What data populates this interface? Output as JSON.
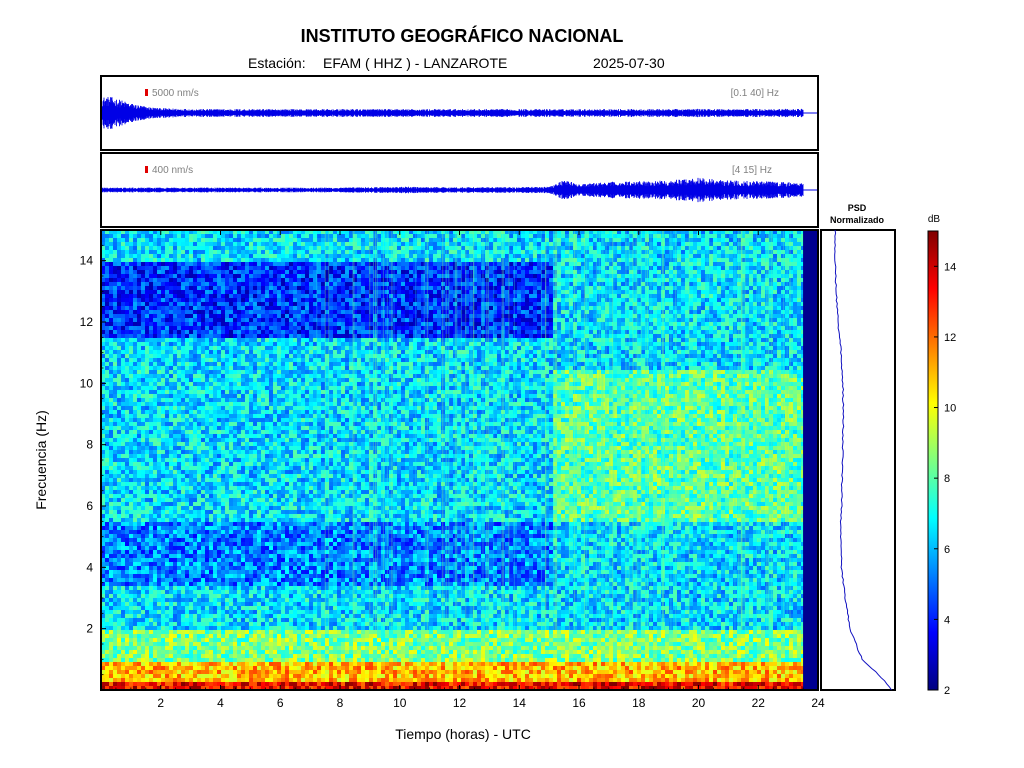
{
  "header": {
    "title": "INSTITUTO GEOGRÁFICO NACIONAL",
    "station_label": "Estación:",
    "station": "EFAM ( HHZ ) - LANZAROTE",
    "date": "2025-07-30"
  },
  "chart_data": [
    {
      "type": "line",
      "panel": "waveform-broadband",
      "scale_label": "5000 nm/s",
      "band_label": "[0.1 40] Hz",
      "x_range": [
        0,
        24
      ],
      "data_end_hour": 23.5,
      "envelope": {
        "x": [
          0,
          0.3,
          0.6,
          1.0,
          1.5,
          2.0,
          3.0,
          5.0,
          8.0,
          12.0,
          16.0,
          20.0,
          23.5
        ],
        "amplitude": [
          1.0,
          1.0,
          0.85,
          0.6,
          0.4,
          0.3,
          0.25,
          0.24,
          0.24,
          0.24,
          0.24,
          0.25,
          0.25
        ]
      },
      "color": "#0000e6"
    },
    {
      "type": "line",
      "panel": "waveform-filtered",
      "scale_label": "400 nm/s",
      "band_label": "[4 15] Hz",
      "x_range": [
        0,
        24
      ],
      "data_end_hour": 23.5,
      "envelope": {
        "x": [
          0,
          2,
          4,
          6,
          8,
          10,
          12,
          14,
          15,
          15.5,
          16,
          17,
          18,
          19,
          20,
          21,
          22,
          23.5
        ],
        "amplitude": [
          0.15,
          0.15,
          0.15,
          0.15,
          0.15,
          0.2,
          0.17,
          0.18,
          0.2,
          0.65,
          0.35,
          0.5,
          0.55,
          0.6,
          0.75,
          0.6,
          0.55,
          0.45
        ]
      },
      "color": "#0000e6"
    },
    {
      "type": "heatmap",
      "panel": "spectrogram",
      "xlabel": "Tiempo (horas) - UTC",
      "ylabel": "Frecuencia  (Hz)",
      "x_range": [
        0,
        24
      ],
      "y_range": [
        0,
        15
      ],
      "x_ticks": [
        2,
        4,
        6,
        8,
        10,
        12,
        14,
        16,
        18,
        20,
        22,
        24
      ],
      "y_ticks": [
        2,
        4,
        6,
        8,
        10,
        12,
        14
      ],
      "data_end_hour": 23.5,
      "background_level_db": 6.5,
      "features": [
        {
          "freq": [
            0,
            0.3
          ],
          "time": [
            0,
            23.5
          ],
          "db": 13.5
        },
        {
          "freq": [
            0.3,
            1.0
          ],
          "time": [
            0,
            23.5
          ],
          "db": 11
        },
        {
          "freq": [
            1.0,
            2.0
          ],
          "time": [
            0,
            23.5
          ],
          "db": 8.5
        },
        {
          "freq": [
            11.5,
            14.0
          ],
          "time": [
            0,
            15.0
          ],
          "db": 4.2
        },
        {
          "freq": [
            3.5,
            5.5
          ],
          "time": [
            0,
            15.0
          ],
          "db": 5.3
        },
        {
          "freq": [
            5.5,
            10.5
          ],
          "time": [
            15.0,
            23.5
          ],
          "db": 8.0
        }
      ]
    },
    {
      "type": "line",
      "panel": "psd",
      "title": "PSD",
      "subtitle": "Normalizado",
      "y_range": [
        0,
        15
      ],
      "freq": [
        0,
        0.5,
        1,
        2,
        3,
        4,
        5,
        6,
        7,
        8,
        9,
        10,
        11,
        12,
        13,
        14,
        15
      ],
      "value": [
        1.0,
        0.78,
        0.5,
        0.3,
        0.22,
        0.16,
        0.14,
        0.16,
        0.17,
        0.18,
        0.19,
        0.18,
        0.15,
        0.1,
        0.07,
        0.05,
        0.05
      ],
      "color": "#0000aa"
    },
    {
      "type": "colorbar",
      "panel": "colorbar",
      "unit_label": "dB",
      "range": [
        2,
        15
      ],
      "ticks": [
        2,
        4,
        6,
        8,
        10,
        12,
        14
      ],
      "colormap": "jet"
    }
  ]
}
